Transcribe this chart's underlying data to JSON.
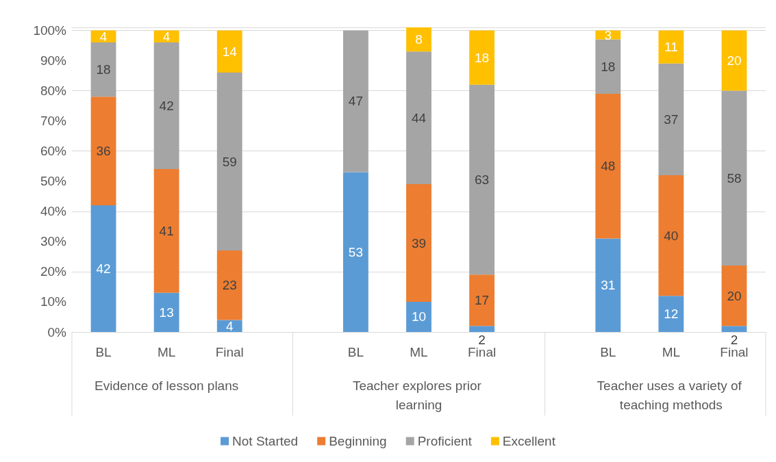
{
  "chart_data": {
    "type": "bar",
    "stacked": true,
    "data_labels": true,
    "grid": "y",
    "legend": "bottom",
    "categories": [
      "BL",
      "ML",
      "Final",
      null,
      "BL",
      "ML",
      "Final",
      null,
      "BL",
      "ML",
      "Final"
    ],
    "series": [
      {
        "name": "Not Started",
        "color": "#5b9bd5",
        "values": [
          42,
          13,
          4,
          null,
          53,
          10,
          2,
          null,
          31,
          12,
          2
        ]
      },
      {
        "name": "Beginning",
        "color": "#ed7d31",
        "values": [
          36,
          41,
          23,
          null,
          null,
          39,
          17,
          null,
          48,
          40,
          20
        ]
      },
      {
        "name": "Proficient",
        "color": "#a5a5a5",
        "values": [
          18,
          42,
          59,
          null,
          47,
          44,
          63,
          null,
          18,
          37,
          58
        ]
      },
      {
        "name": "Excellent",
        "color": "#ffc000",
        "values": [
          4,
          4,
          14,
          null,
          null,
          8,
          18,
          null,
          3,
          11,
          20
        ]
      }
    ],
    "ylim": [
      0,
      101
    ],
    "yticks": [
      {
        "value": 0,
        "label": "0%"
      },
      {
        "value": 10,
        "label": "10%"
      },
      {
        "value": 20,
        "label": "20%"
      },
      {
        "value": 30,
        "label": "30%"
      },
      {
        "value": 40,
        "label": "40%"
      },
      {
        "value": 50,
        "label": "50%"
      },
      {
        "value": 60,
        "label": "60%"
      },
      {
        "value": 70,
        "label": "70%"
      },
      {
        "value": 80,
        "label": "80%"
      },
      {
        "value": 90,
        "label": "90%"
      },
      {
        "value": 100,
        "label": "100%"
      }
    ],
    "annotations": [
      "Evidence of lesson plans",
      "Teacher explores prior learning",
      "Teacher uses a variety of teaching methods"
    ]
  }
}
